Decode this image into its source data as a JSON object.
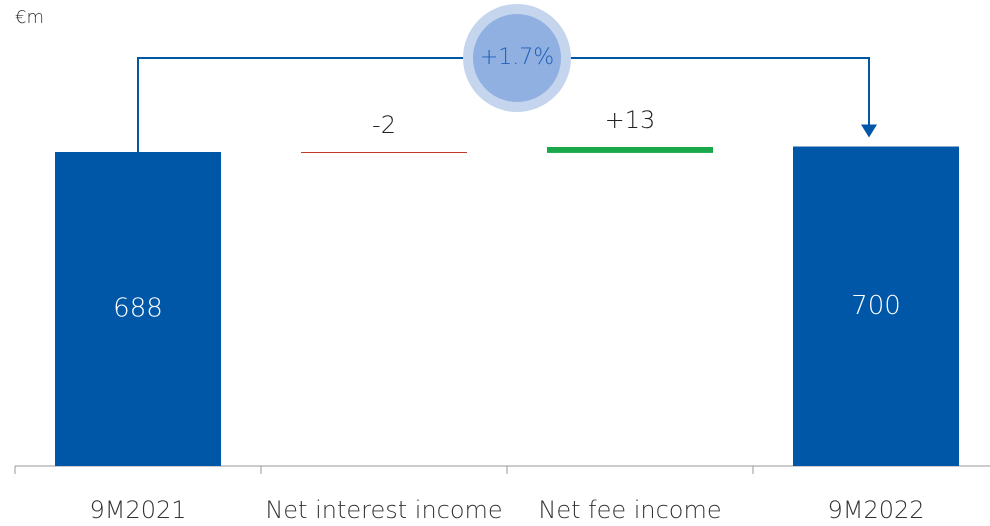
{
  "chart_data": {
    "type": "waterfall",
    "unit": "€m",
    "categories": [
      "9M2021",
      "Net interest income",
      "Net fee income",
      "9M2022"
    ],
    "values": [
      688,
      -2,
      13,
      700
    ],
    "value_labels": [
      "688",
      "-2",
      "+13",
      "700"
    ],
    "kinds": [
      "total",
      "delta",
      "delta",
      "total"
    ],
    "color": "#0057a8",
    "increase_color": "#18a84a",
    "decrease_color": "#c0392b",
    "annotation": "+1.7%"
  }
}
